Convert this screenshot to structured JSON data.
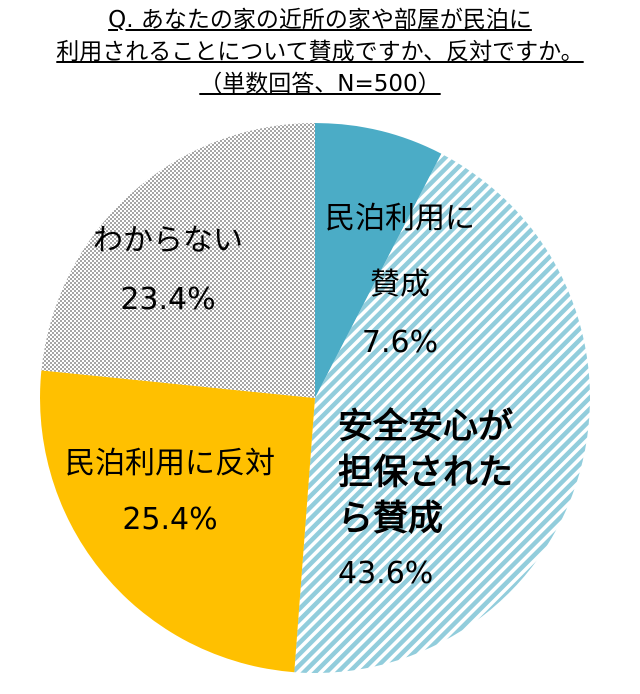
{
  "chart_data": {
    "type": "pie",
    "title_lines": [
      "Q. あなたの家の近所の家や部屋が民泊に",
      "利用されることについて賛成ですか、反対ですか。",
      "（単数回答、N=500）"
    ],
    "categories": [
      "民泊利用に賛成",
      "安全安心が担保されたら賛成",
      "民泊利用に反対",
      "わからない"
    ],
    "values": [
      7.6,
      43.6,
      25.4,
      23.4
    ],
    "value_labels": [
      "7.6%",
      "43.6%",
      "25.4%",
      "23.4%"
    ],
    "colors": [
      "#4bacc6",
      "#92cddc",
      "#ffc000",
      "#a6a6a6"
    ],
    "patterns": [
      "solid",
      "hatch",
      "solid",
      "dots"
    ]
  }
}
